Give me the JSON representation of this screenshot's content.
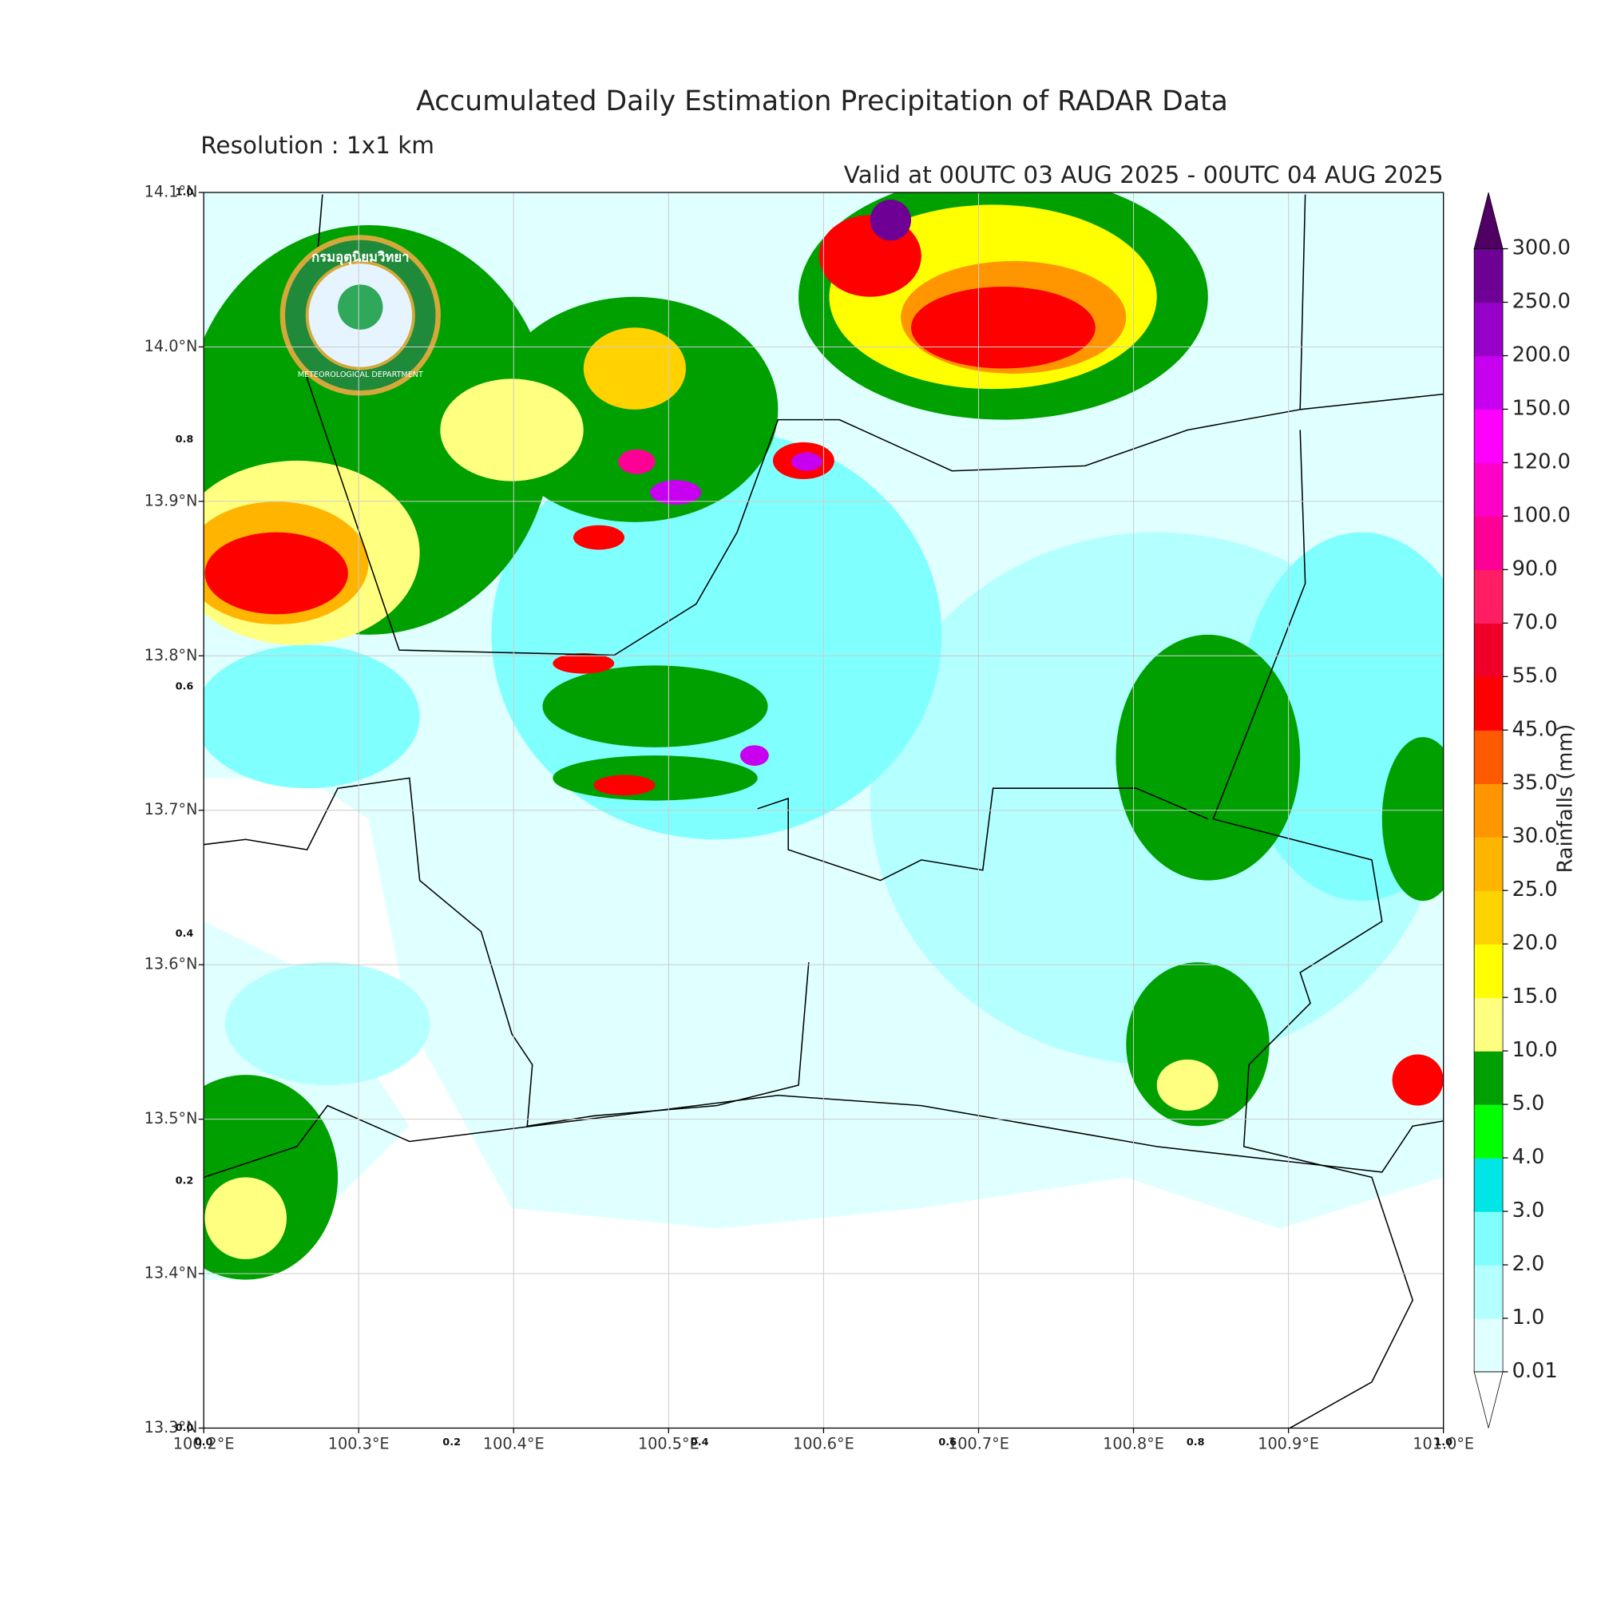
{
  "title": "Accumulated Daily Estimation Precipitation of RADAR Data",
  "subtitle": "Resolution : 1x1 km",
  "valid": "Valid at 00UTC 03 AUG 2025 - 00UTC 04 AUG 2025",
  "logo": {
    "thai": "กรมอุตุนิยมวิทยา",
    "english": "METEOROLOGICAL DEPARTMENT"
  },
  "map": {
    "xlim": [
      100.2,
      101.0
    ],
    "ylim": [
      13.3,
      14.1
    ],
    "xticks": [
      {
        "value": 100.2,
        "label": "100.2°E"
      },
      {
        "value": 100.3,
        "label": "100.3°E"
      },
      {
        "value": 100.4,
        "label": "100.4°E"
      },
      {
        "value": 100.5,
        "label": "100.5°E"
      },
      {
        "value": 100.6,
        "label": "100.6°E"
      },
      {
        "value": 100.7,
        "label": "100.7°E"
      },
      {
        "value": 100.8,
        "label": "100.8°E"
      },
      {
        "value": 100.9,
        "label": "100.9°E"
      },
      {
        "value": 101.0,
        "label": "101.0°E"
      }
    ],
    "yticks": [
      {
        "value": 13.3,
        "label": "13.3°N"
      },
      {
        "value": 13.4,
        "label": "13.4°N"
      },
      {
        "value": 13.5,
        "label": "13.5°N"
      },
      {
        "value": 13.6,
        "label": "13.6°N"
      },
      {
        "value": 13.7,
        "label": "13.7°N"
      },
      {
        "value": 13.8,
        "label": "13.8°N"
      },
      {
        "value": 13.9,
        "label": "13.9°N"
      },
      {
        "value": 14.0,
        "label": "14.0°N"
      },
      {
        "value": 14.1,
        "label": "14.1°N"
      }
    ],
    "grid": true,
    "inner_lim": [
      0,
      1
    ],
    "inner_ticks": [
      {
        "value": 0,
        "label": "0.0"
      },
      0.2,
      0.4,
      0.6,
      0.8,
      {
        "value": 1,
        "label": "1.0"
      }
    ]
  },
  "colorbar": {
    "label": "Rainfalls (mm)",
    "levels": [
      0.01,
      {
        "value": 1,
        "label": "1.0"
      },
      {
        "value": 2,
        "label": "2.0"
      },
      {
        "value": 3,
        "label": "3.0"
      },
      {
        "value": 4,
        "label": "4.0"
      },
      {
        "value": 5,
        "label": "5.0"
      },
      {
        "value": 10,
        "label": "10.0"
      },
      {
        "value": 15,
        "label": "15.0"
      },
      {
        "value": 20,
        "label": "20.0"
      },
      {
        "value": 25,
        "label": "25.0"
      },
      {
        "value": 30,
        "label": "30.0"
      },
      {
        "value": 35,
        "label": "35.0"
      },
      {
        "value": 45,
        "label": "45.0"
      },
      {
        "value": 55,
        "label": "55.0"
      },
      {
        "value": 70,
        "label": "70.0"
      },
      {
        "value": 90,
        "label": "90.0"
      },
      {
        "value": 100,
        "label": "100.0"
      },
      {
        "value": 120,
        "label": "120.0"
      },
      {
        "value": 150,
        "label": "150.0"
      },
      {
        "value": 200,
        "label": "200.0"
      },
      {
        "value": 250,
        "label": "250.0"
      },
      {
        "value": 300,
        "label": "300.0"
      }
    ],
    "colors": [
      "#e0ffff",
      "#b4ffff",
      "#80ffff",
      "#00e6e6",
      "#00ff00",
      "#00a000",
      "#ffff80",
      "#ffff00",
      "#ffd200",
      "#ffb400",
      "#ff9600",
      "#ff5a00",
      "#ff0000",
      "#f00028",
      "#ff1e64",
      "#ff0096",
      "#ff00c8",
      "#ff00ff",
      "#c800f0",
      "#9600c8",
      "#6e0096"
    ],
    "under_color": "#ffffff",
    "over_color": "#500064"
  }
}
